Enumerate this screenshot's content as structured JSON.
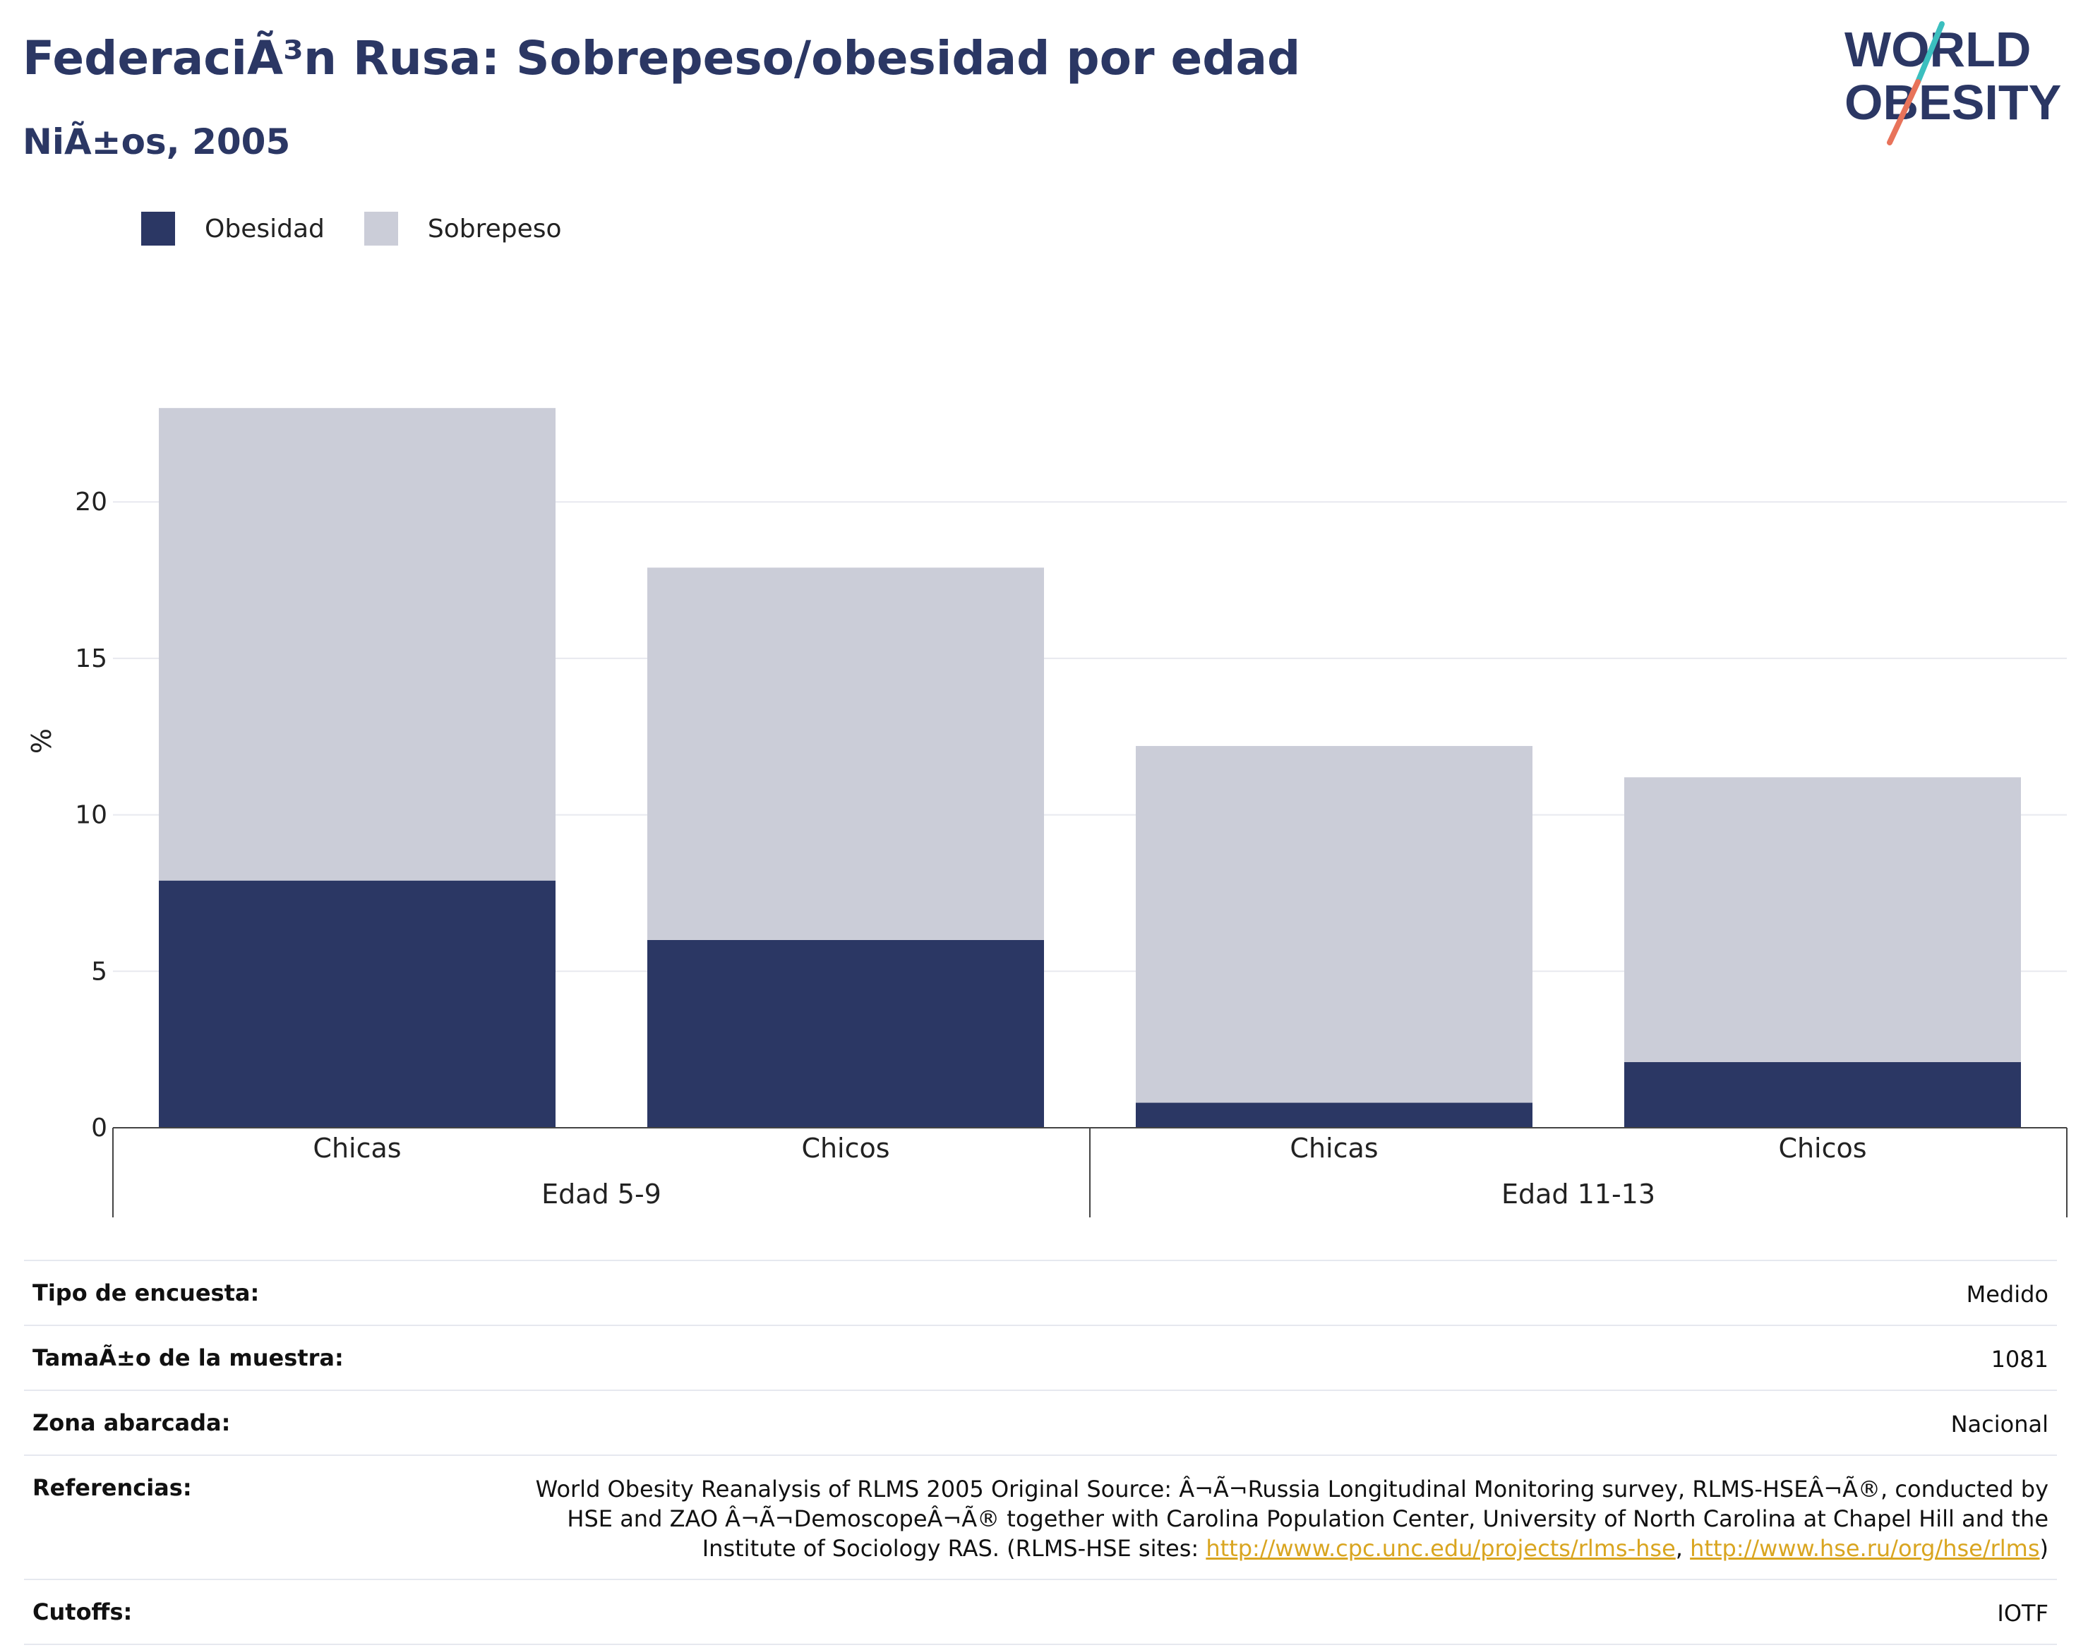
{
  "header": {
    "title": "FederaciÃ³n Rusa: Sobrepeso/obesidad por edad",
    "subtitle": "NiÃ±os, 2005"
  },
  "logo": {
    "line1": "WORLD",
    "line2": "OBESITY"
  },
  "colors": {
    "obesidad": "#2b3764",
    "sobrepeso": "#cbcdd8",
    "text": "#2b3764",
    "link": "#d9a520",
    "accent_teal": "#3bbfbf",
    "accent_coral": "#e8735a"
  },
  "legend": [
    {
      "label": "Obesidad",
      "color": "#2b3764"
    },
    {
      "label": "Sobrepeso",
      "color": "#cbcdd8"
    }
  ],
  "chart_data": {
    "type": "bar",
    "stacked": true,
    "ylabel": "%",
    "ylim": [
      0,
      23.5
    ],
    "yticks": [
      0,
      5,
      10,
      15,
      20
    ],
    "grid": true,
    "legend_position": "top-left",
    "groups": [
      {
        "label": "Edad 5-9",
        "categories": [
          "Chicas",
          "Chicos"
        ]
      },
      {
        "label": "Edad 11-13",
        "categories": [
          "Chicas",
          "Chicos"
        ]
      }
    ],
    "categories": [
      "Chicas",
      "Chicos",
      "Chicas",
      "Chicos"
    ],
    "series": [
      {
        "name": "Obesidad",
        "values": [
          7.9,
          6.0,
          0.8,
          2.1
        ]
      },
      {
        "name": "Sobrepeso",
        "values": [
          15.1,
          11.9,
          11.4,
          9.1
        ]
      }
    ]
  },
  "info": [
    {
      "key": "Tipo de encuesta:",
      "value": "Medido"
    },
    {
      "key": "TamaÃ±o de la muestra:",
      "value": "1081"
    },
    {
      "key": "Zona abarcada:",
      "value": "Nacional"
    },
    {
      "key": "Referencias:",
      "value": "World Obesity Reanalysis of RLMS 2005 Original Source: Â¬Ã¬Russia Longitudinal Monitoring survey, RLMS-HSEÂ¬Ã®, conducted by HSE and ZAO Â¬Ã¬DemoscopeÂ¬Ã® together with Carolina Population Center, University of North Carolina at Chapel Hill and the Institute of Sociology RAS. (RLMS-HSE sites: ",
      "link1": "http://www.cpc.unc.edu/projects/rlms-hse",
      "sep": ", ",
      "link2": "http://www.hse.ru/org/hse/rlms",
      "tail": ")"
    },
    {
      "key": "Cutoffs:",
      "value": "IOTF"
    }
  ]
}
